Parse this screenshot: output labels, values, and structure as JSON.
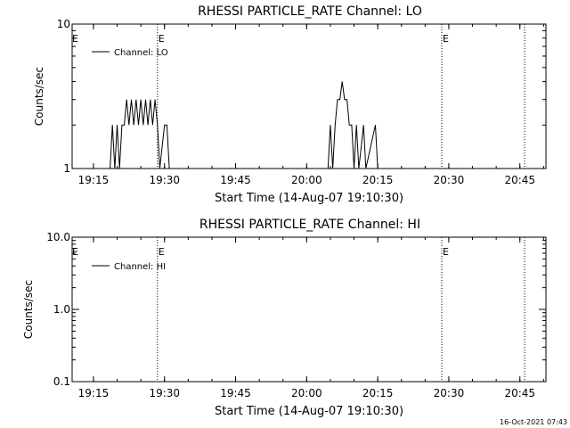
{
  "footer_timestamp": "16-Oct-2021 07:43",
  "chart_data": [
    {
      "type": "line",
      "title": "RHESSI PARTICLE_RATE Channel: LO",
      "xlabel": "Start Time (14-Aug-07 19:10:30)",
      "ylabel": "Counts/sec",
      "yscale": "log",
      "ylim": [
        1,
        10
      ],
      "xlim": [
        "19:10:30",
        "20:50:30"
      ],
      "yticks": [
        {
          "value": 1,
          "label": "1"
        },
        {
          "value": 10,
          "label": "10"
        }
      ],
      "xticks": [
        "19:15",
        "19:30",
        "19:45",
        "20:00",
        "20:15",
        "20:30",
        "20:45"
      ],
      "legend": "top-left",
      "grid": false,
      "series": [
        {
          "name": "Channel: LO",
          "points": [
            [
              "19:10:30",
              1
            ],
            [
              "19:18:30",
              1
            ],
            [
              "19:19:00",
              2
            ],
            [
              "19:19:30",
              1
            ],
            [
              "19:20:00",
              2
            ],
            [
              "19:20:30",
              1
            ],
            [
              "19:21:00",
              2
            ],
            [
              "19:21:30",
              2
            ],
            [
              "19:22:00",
              3
            ],
            [
              "19:22:30",
              2
            ],
            [
              "19:23:00",
              3
            ],
            [
              "19:23:30",
              2
            ],
            [
              "19:24:00",
              3
            ],
            [
              "19:24:30",
              2
            ],
            [
              "19:25:00",
              3
            ],
            [
              "19:25:30",
              2
            ],
            [
              "19:26:00",
              3
            ],
            [
              "19:26:30",
              2
            ],
            [
              "19:27:00",
              3
            ],
            [
              "19:27:30",
              2
            ],
            [
              "19:28:00",
              3
            ],
            [
              "19:28:30",
              2
            ],
            [
              "19:29:00",
              1
            ],
            [
              "19:30:00",
              2
            ],
            [
              "19:30:30",
              2
            ],
            [
              "19:31:00",
              1
            ],
            [
              "20:04:30",
              1
            ],
            [
              "20:05:00",
              2
            ],
            [
              "20:05:30",
              1
            ],
            [
              "20:06:00",
              2
            ],
            [
              "20:06:30",
              3
            ],
            [
              "20:07:00",
              3
            ],
            [
              "20:07:30",
              4
            ],
            [
              "20:08:00",
              3
            ],
            [
              "20:08:30",
              3
            ],
            [
              "20:09:00",
              2
            ],
            [
              "20:09:30",
              2
            ],
            [
              "20:10:00",
              1
            ],
            [
              "20:10:30",
              2
            ],
            [
              "20:11:00",
              1
            ],
            [
              "20:12:00",
              2
            ],
            [
              "20:12:30",
              1
            ],
            [
              "20:14:30",
              2
            ],
            [
              "20:15:00",
              1
            ],
            [
              "20:50:30",
              1
            ]
          ]
        }
      ],
      "annotations": [
        {
          "time": "19:28:30",
          "label": "E"
        },
        {
          "time": "20:28:30",
          "label": "E"
        },
        {
          "time": "20:46:00",
          "label": ""
        }
      ],
      "left_marker": "E"
    },
    {
      "type": "line",
      "title": "RHESSI PARTICLE_RATE Channel: HI",
      "xlabel": "Start Time (14-Aug-07 19:10:30)",
      "ylabel": "Counts/sec",
      "yscale": "log",
      "ylim": [
        0.1,
        10
      ],
      "xlim": [
        "19:10:30",
        "20:50:30"
      ],
      "yticks": [
        {
          "value": 0.1,
          "label": "0.1"
        },
        {
          "value": 1,
          "label": "1.0"
        },
        {
          "value": 10,
          "label": "10.0"
        }
      ],
      "xticks": [
        "19:15",
        "19:30",
        "19:45",
        "20:00",
        "20:15",
        "20:30",
        "20:45"
      ],
      "legend": "top-left",
      "grid": false,
      "series": [
        {
          "name": "Channel: HI",
          "points": []
        }
      ],
      "annotations": [
        {
          "time": "19:28:30",
          "label": "E"
        },
        {
          "time": "20:28:30",
          "label": "E"
        },
        {
          "time": "20:46:00",
          "label": ""
        }
      ],
      "left_marker": "E"
    }
  ]
}
